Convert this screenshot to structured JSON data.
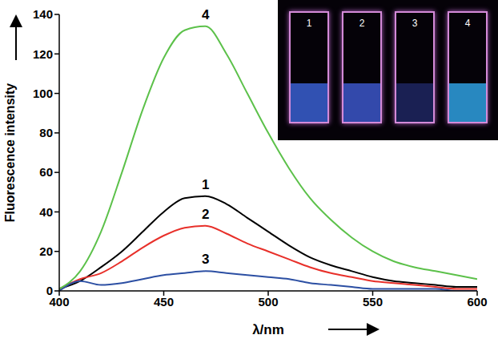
{
  "chart_data": {
    "type": "line",
    "x_label": "λ/nm",
    "y_label": "Fluorescence intensity",
    "x": [
      400,
      410,
      420,
      430,
      440,
      450,
      460,
      470,
      480,
      490,
      500,
      510,
      520,
      530,
      540,
      550,
      560,
      570,
      580,
      590,
      600
    ],
    "xlim": [
      400,
      600
    ],
    "xticks": [
      400,
      450,
      500,
      550,
      600
    ],
    "ylim": [
      0,
      140
    ],
    "yticks": [
      0,
      20,
      40,
      60,
      80,
      100,
      120,
      140
    ],
    "grid": false,
    "series": [
      {
        "name": "1",
        "color": "#000000",
        "values": [
          1,
          5,
          12,
          20,
          30,
          40,
          47,
          48,
          44,
          37,
          30,
          23,
          17,
          13,
          10,
          7,
          5,
          4,
          3,
          2,
          2
        ]
      },
      {
        "name": "2",
        "color": "#e8302a",
        "values": [
          1,
          6,
          9,
          15,
          22,
          28,
          32,
          33,
          29,
          24,
          20,
          16,
          12,
          9,
          7,
          5,
          4,
          3,
          2,
          1,
          1
        ]
      },
      {
        "name": "3",
        "color": "#2c4fa3",
        "values": [
          0,
          5,
          3,
          4,
          6,
          8,
          9,
          10,
          9,
          8,
          7,
          6,
          4,
          3,
          2,
          1,
          1,
          1,
          1,
          0,
          0
        ]
      },
      {
        "name": "4",
        "color": "#5cc14a",
        "values": [
          1,
          10,
          30,
          60,
          92,
          118,
          132,
          134,
          120,
          100,
          80,
          62,
          47,
          36,
          27,
          20,
          15,
          12,
          10,
          8,
          6
        ]
      }
    ]
  }
}
